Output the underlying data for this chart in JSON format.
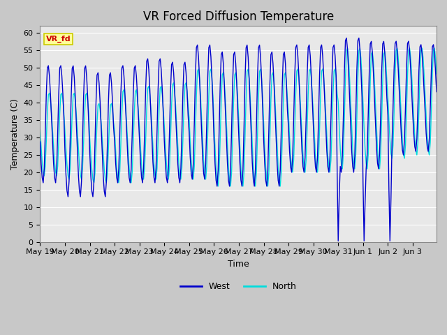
{
  "title": "VR Forced Diffusion Temperature",
  "xlabel": "Time",
  "ylabel": "Temperature (C)",
  "ylim": [
    0,
    62
  ],
  "yticks": [
    0,
    5,
    10,
    15,
    20,
    25,
    30,
    35,
    40,
    45,
    50,
    55,
    60
  ],
  "west_color": "#0000CC",
  "north_color": "#00DDDD",
  "bg_color": "#E8E8E8",
  "grid_color": "#FFFFFF",
  "legend_west": "West",
  "legend_north": "North",
  "annotation_text": "VR_fd",
  "annotation_color": "#CC0000",
  "annotation_bg": "#FFFF99",
  "annotation_border": "#CCCC00",
  "title_fontsize": 12,
  "axis_fontsize": 9,
  "tick_fontsize": 8,
  "figwidth": 6.4,
  "figheight": 4.8,
  "dpi": 100
}
